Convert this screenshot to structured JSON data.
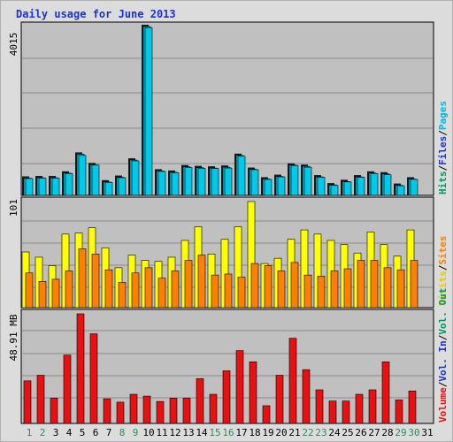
{
  "title": "Daily usage for June 2013",
  "colors": {
    "panel_bg": "#c0c0c0",
    "grid": "#8a8a8a",
    "hits": "#00c8e8",
    "visits": "#ffff00",
    "sites": "#ff8000",
    "volume": "#e81010",
    "weekend_day": "#2e8b57",
    "weekday_day": "#000000"
  },
  "chart_data": [
    {
      "type": "bar",
      "panel": "hits",
      "ymax_label": "4015",
      "ylim": [
        0,
        4015
      ],
      "legend": [
        {
          "text": "Hits",
          "color": "#009966"
        },
        {
          "text": "/",
          "color": "#000000"
        },
        {
          "text": "Files",
          "color": "#1a33cc"
        },
        {
          "text": "/",
          "color": "#000000"
        },
        {
          "text": "Pages",
          "color": "#00b8e0"
        }
      ],
      "categories": [
        "1",
        "2",
        "3",
        "4",
        "5",
        "6",
        "7",
        "8",
        "9",
        "10",
        "11",
        "12",
        "13",
        "14",
        "15",
        "16",
        "17",
        "18",
        "19",
        "20",
        "21",
        "22",
        "23",
        "24",
        "25",
        "26",
        "27",
        "28",
        "29",
        "30",
        "31"
      ],
      "series": [
        {
          "name": "Hits",
          "values": [
            410,
            420,
            420,
            530,
            980,
            730,
            320,
            430,
            840,
            4015,
            580,
            550,
            680,
            660,
            650,
            670,
            950,
            620,
            390,
            450,
            720,
            690,
            440,
            250,
            330,
            440,
            530,
            510,
            240,
            390,
            0
          ]
        },
        {
          "name": "Files",
          "values": [
            400,
            410,
            410,
            520,
            950,
            720,
            310,
            420,
            820,
            3990,
            570,
            540,
            660,
            640,
            640,
            650,
            930,
            610,
            380,
            440,
            710,
            670,
            430,
            240,
            320,
            430,
            520,
            490,
            230,
            380,
            0
          ]
        }
      ]
    },
    {
      "type": "bar",
      "panel": "visits",
      "ymax_label": "101",
      "ylim": [
        0,
        101
      ],
      "legend": [
        {
          "text": "Visits",
          "color": "#e6c800"
        },
        {
          "text": "/",
          "color": "#000000"
        },
        {
          "text": "Sites",
          "color": "#ff8000"
        }
      ],
      "categories": [
        "1",
        "2",
        "3",
        "4",
        "5",
        "6",
        "7",
        "8",
        "9",
        "10",
        "11",
        "12",
        "13",
        "14",
        "15",
        "16",
        "17",
        "18",
        "19",
        "20",
        "21",
        "22",
        "23",
        "24",
        "25",
        "26",
        "27",
        "28",
        "29",
        "30",
        "31"
      ],
      "series": [
        {
          "name": "Visits",
          "values": [
            53,
            48,
            40,
            70,
            71,
            76,
            57,
            38,
            50,
            45,
            44,
            48,
            64,
            77,
            51,
            65,
            77,
            101,
            42,
            47,
            65,
            74,
            70,
            64,
            60,
            52,
            72,
            60,
            49,
            74,
            0
          ]
        },
        {
          "name": "Sites",
          "values": [
            33,
            25,
            27,
            35,
            56,
            51,
            36,
            24,
            33,
            38,
            28,
            35,
            45,
            50,
            31,
            32,
            29,
            42,
            40,
            35,
            43,
            31,
            30,
            35,
            37,
            45,
            45,
            38,
            36,
            45,
            0
          ]
        }
      ]
    },
    {
      "type": "bar",
      "panel": "volume",
      "ymax_label": "48.91 MB",
      "ylim": [
        0,
        48.91
      ],
      "legend": [
        {
          "text": "Volume",
          "color": "#e81010"
        },
        {
          "text": "/",
          "color": "#000000"
        },
        {
          "text": "Vol. In",
          "color": "#1a33cc"
        },
        {
          "text": "/",
          "color": "#000000"
        },
        {
          "text": "Vol. Out",
          "color": "#009966"
        }
      ],
      "categories": [
        "1",
        "2",
        "3",
        "4",
        "5",
        "6",
        "7",
        "8",
        "9",
        "10",
        "11",
        "12",
        "13",
        "14",
        "15",
        "16",
        "17",
        "18",
        "19",
        "20",
        "21",
        "22",
        "23",
        "24",
        "25",
        "26",
        "27",
        "28",
        "29",
        "30",
        "31"
      ],
      "series": [
        {
          "name": "Volume",
          "values": [
            19,
            21.5,
            11.3,
            30.5,
            49,
            40,
            11,
            9.5,
            13,
            12.2,
            9.8,
            11.3,
            11.3,
            20,
            13,
            23.5,
            32.5,
            27.5,
            7.9,
            21.5,
            38,
            24,
            15,
            10,
            10,
            13,
            15,
            27.5,
            10.5,
            14.5,
            0
          ]
        }
      ]
    }
  ],
  "weekend_days": [
    1,
    2,
    8,
    9,
    15,
    16,
    22,
    23,
    29,
    30
  ]
}
